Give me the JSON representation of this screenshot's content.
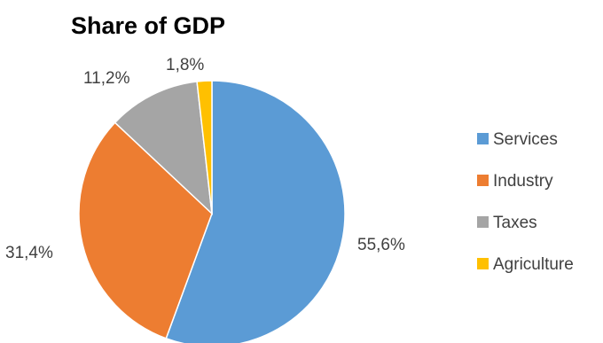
{
  "chart_data": {
    "type": "pie",
    "title": "Share of GDP",
    "categories": [
      "Services",
      "Industry",
      "Taxes",
      "Agriculture"
    ],
    "values": [
      55.6,
      31.4,
      11.2,
      1.8
    ],
    "labels": [
      "55,6%",
      "31,4%",
      "11,2%",
      "1,8%"
    ],
    "colors": [
      "#5B9BD5",
      "#ED7D31",
      "#A5A5A5",
      "#FFC000"
    ],
    "start_angle_deg": 0,
    "direction": "clockwise",
    "legend_position": "right"
  }
}
